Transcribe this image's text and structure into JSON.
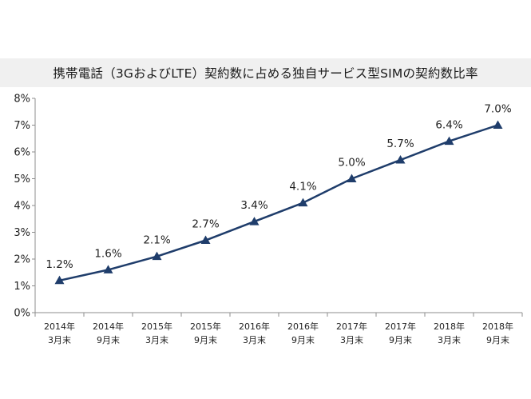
{
  "chart_data": {
    "type": "line",
    "title": "携帯電話（3GおよびLTE）契約数に占める独自サービス型SIMの契約数比率",
    "categories": [
      [
        "2014年",
        "3月末"
      ],
      [
        "2014年",
        "9月末"
      ],
      [
        "2015年",
        "3月末"
      ],
      [
        "2015年",
        "9月末"
      ],
      [
        "2016年",
        "3月末"
      ],
      [
        "2016年",
        "9月末"
      ],
      [
        "2017年",
        "3月末"
      ],
      [
        "2017年",
        "9月末"
      ],
      [
        "2018年",
        "3月末"
      ],
      [
        "2018年",
        "9月末"
      ]
    ],
    "values": [
      1.2,
      1.6,
      2.1,
      2.7,
      3.4,
      4.1,
      5.0,
      5.7,
      6.4,
      7.0
    ],
    "data_labels": [
      "1.2%",
      "1.6%",
      "2.1%",
      "2.7%",
      "3.4%",
      "4.1%",
      "5.0%",
      "5.7%",
      "6.4%",
      "7.0%"
    ],
    "ylim": [
      0,
      8
    ],
    "yticks": [
      0,
      1,
      2,
      3,
      4,
      5,
      6,
      7,
      8
    ],
    "ytick_labels": [
      "0%",
      "1%",
      "2%",
      "3%",
      "4%",
      "5%",
      "6%",
      "7%",
      "8%"
    ],
    "xlabel": "",
    "ylabel": "",
    "marker": "triangle",
    "grid": false,
    "legend": "none",
    "colors": {
      "line": "#1f3d6b",
      "axis": "#8c8c8c"
    }
  }
}
